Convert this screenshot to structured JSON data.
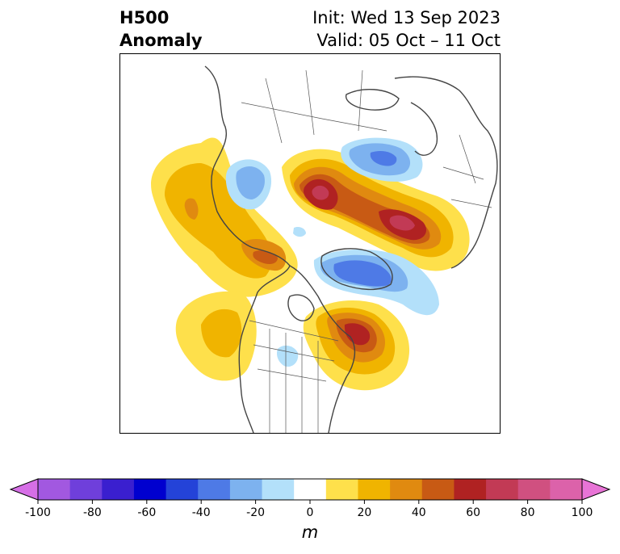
{
  "title": {
    "left_line1": "H500",
    "left_line2": "Anomaly",
    "right_line1": "Init: Wed 13 Sep 2023",
    "right_line2": "Valid: 05 Oct – 11 Oct"
  },
  "colorbar": {
    "unit": "m",
    "ticks": [
      "-100",
      "-80",
      "-60",
      "-40",
      "-20",
      "0",
      "20",
      "40",
      "60",
      "80",
      "100"
    ],
    "tick_values": [
      -100,
      -80,
      -60,
      -40,
      -20,
      0,
      20,
      40,
      60,
      80,
      100
    ],
    "levels": [
      -100,
      -90,
      -80,
      -70,
      -60,
      -50,
      -40,
      -30,
      -20,
      -10,
      10,
      20,
      30,
      40,
      50,
      60,
      70,
      80,
      90,
      100
    ],
    "colors": [
      "#d66fe6",
      "#a258e0",
      "#6f3fdb",
      "#3a1fcf",
      "#0000cf",
      "#2443d8",
      "#4e7ae6",
      "#7db2ef",
      "#b3e0fa",
      "#ffffff",
      "#fee04b",
      "#f0b400",
      "#e08a10",
      "#c85a14",
      "#b02222",
      "#c23a55",
      "#d05080",
      "#dc62aa",
      "#e874d6"
    ],
    "extend": "both"
  },
  "map": {
    "projection": "polar-stereographic",
    "region": "North Pacific / North America / North Atlantic",
    "colors": {
      "yellow": "#fee04b",
      "gold": "#f0b400",
      "orange": "#e08a10",
      "dark_orange": "#c85a14",
      "red": "#b02222",
      "crimson": "#c23a55",
      "light_blue": "#b3e0fa",
      "sky_blue": "#7db2ef",
      "blue": "#4e7ae6",
      "coast": "#444444"
    }
  }
}
